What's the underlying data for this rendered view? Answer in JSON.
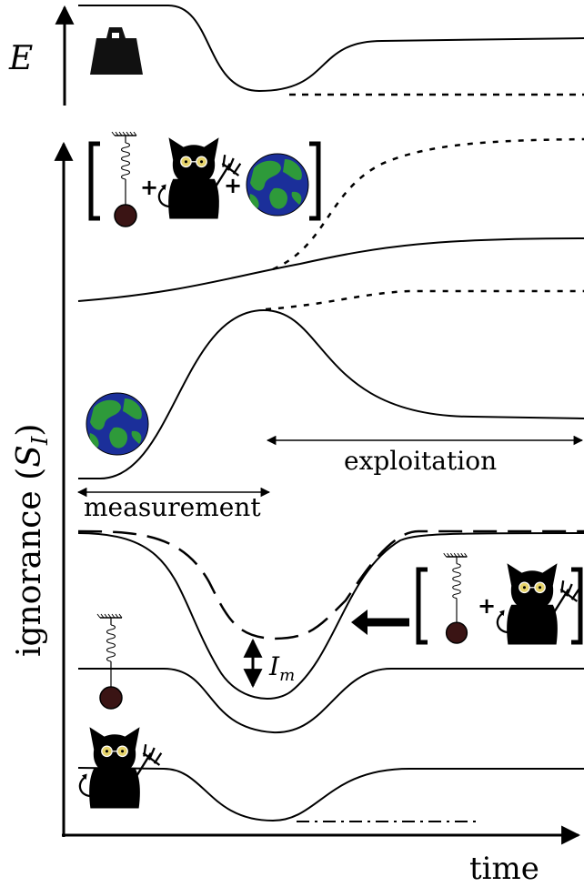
{
  "axes": {
    "energy_symbol": "E",
    "y_label_word": "ignorance (",
    "y_label_symbol": "S",
    "y_label_subscript": "I",
    "y_label_close": ")",
    "x_label": "time"
  },
  "annotations": {
    "measurement": "measurement",
    "exploitation": "exploitation",
    "im_symbol": "I",
    "im_subscript": "m",
    "plus": "+"
  },
  "icons": [
    "weight-icon",
    "pendulum-icon",
    "demon-icon",
    "earth-icon"
  ],
  "colors": {
    "ink": "#000000",
    "earth_ocean": "#1b2f9a",
    "earth_land": "#2e9a3a",
    "bob": "#3a1414",
    "demon_eyes": "#e6d36a"
  }
}
